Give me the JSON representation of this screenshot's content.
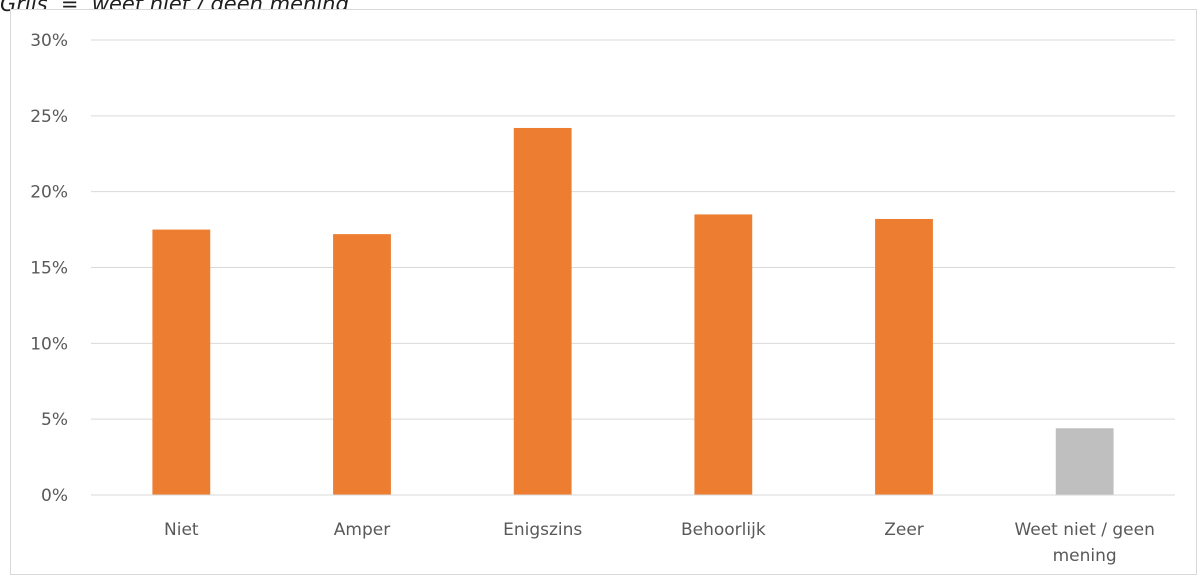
{
  "caption": {
    "text": "Grijs  =  weet niet / geen mening"
  },
  "chart_data": {
    "type": "bar",
    "categories": [
      "Niet",
      "Amper",
      "Enigszins",
      "Behoorlijk",
      "Zeer",
      "Weet niet / geen mening"
    ],
    "category_lines": [
      [
        "Niet"
      ],
      [
        "Amper"
      ],
      [
        "Enigszins"
      ],
      [
        "Behoorlijk"
      ],
      [
        "Zeer"
      ],
      [
        "Weet niet / geen",
        "mening"
      ]
    ],
    "values": [
      17.5,
      17.2,
      24.2,
      18.5,
      18.2,
      4.4
    ],
    "colors": [
      "#ED7D31",
      "#ED7D31",
      "#ED7D31",
      "#ED7D31",
      "#ED7D31",
      "#BFBFBF"
    ],
    "yticks": [
      "0%",
      "5%",
      "10%",
      "15%",
      "20%",
      "25%",
      "30%"
    ],
    "ylim": [
      0,
      30
    ],
    "title": "",
    "xlabel": "",
    "ylabel": "",
    "grid": true,
    "legend": "none"
  }
}
